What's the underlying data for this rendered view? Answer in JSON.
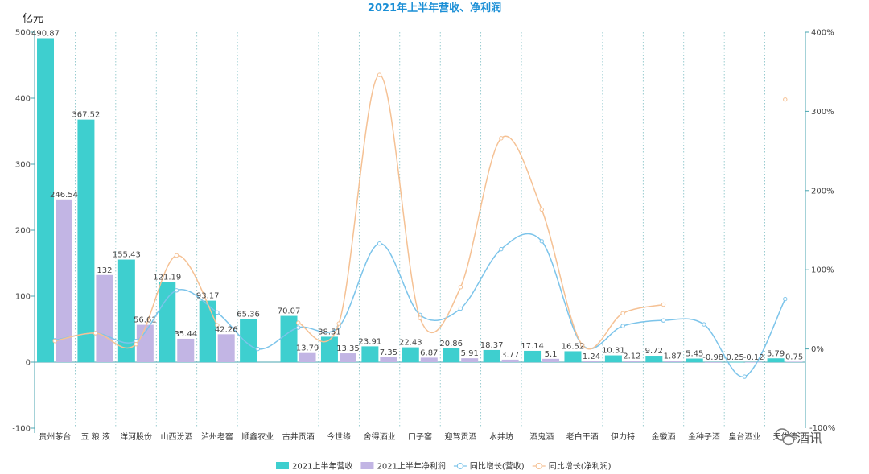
{
  "chart_data": {
    "type": "bar",
    "title": "2021年上半年营收、净利润",
    "ylabel": "亿元",
    "ylim": [
      -100,
      500
    ],
    "yticks": [
      -100,
      0,
      100,
      200,
      300,
      400,
      500
    ],
    "y2lim": [
      -100,
      400
    ],
    "y2ticks": [
      0,
      100,
      200,
      300,
      400
    ],
    "y2tick_labels": [
      "0%",
      "100%",
      "200%",
      "300%",
      "400%"
    ],
    "y2_bottom_label": "-100%",
    "categories": [
      "贵州茅台",
      "五 粮 液",
      "洋河股份",
      "山西汾酒",
      "泸州老窖",
      "顺鑫农业",
      "古井贡酒",
      "今世缘",
      "舍得酒业",
      "口子窖",
      "迎驾贡酒",
      "水井坊",
      "酒鬼酒",
      "老白干酒",
      "伊力特",
      "金徽酒",
      "金种子酒",
      "皇台酒业",
      "天佑德"
    ],
    "series": [
      {
        "name": "2021上半年营收",
        "kind": "bar",
        "color": "#3ecfcf",
        "values": [
          490.87,
          367.52,
          155.43,
          121.19,
          93.17,
          65.36,
          70.07,
          38.51,
          23.91,
          22.43,
          20.86,
          18.37,
          17.14,
          16.52,
          10.31,
          9.72,
          5.45,
          0.25,
          5.79
        ],
        "labels": [
          "490.87",
          "367.52",
          "155.43",
          "121.19",
          "93.17",
          "65.36",
          "70.07",
          "38.51",
          "23.91",
          "22.43",
          "20.86",
          "18.37",
          "17.14",
          "16.52",
          "10.31",
          "9.72",
          "5.45",
          "0.25",
          "5.79"
        ]
      },
      {
        "name": "2021上半年净利润",
        "kind": "bar",
        "color": "#c2b5e4",
        "values": [
          246.54,
          132,
          56.61,
          35.44,
          42.26,
          null,
          13.79,
          13.35,
          7.35,
          6.87,
          5.91,
          3.77,
          5.1,
          1.24,
          2.12,
          1.87,
          -0.98,
          -0.12,
          0.75
        ],
        "labels": [
          "246.54",
          "132",
          "56.61",
          "35.44",
          "42.26",
          "",
          "13.79",
          "13.35",
          "7.35",
          "6.87",
          "5.91",
          "3.77",
          "5.1",
          "1.24",
          "2.12",
          "1.87",
          "-0.98",
          "-0.12",
          "0.75"
        ]
      },
      {
        "name": "同比增长(营收)",
        "kind": "line",
        "axis": "right",
        "color": "#7cc4ea",
        "values": [
          11,
          20,
          10,
          74,
          46,
          0,
          27,
          28,
          133,
          43,
          51,
          126,
          136,
          5,
          29,
          36,
          31,
          -35,
          63
        ]
      },
      {
        "name": "同比增长(净利润)",
        "kind": "line",
        "axis": "right",
        "color": "#f5c194",
        "values": [
          10,
          20,
          6,
          118,
          30,
          null,
          33,
          32,
          346,
          39,
          78,
          266,
          176,
          5,
          45,
          56,
          null,
          null,
          315
        ]
      }
    ],
    "legend_position": "bottom-center",
    "grid": "vertical dotted separators between categories"
  },
  "watermark": {
    "text": "酒讯"
  }
}
